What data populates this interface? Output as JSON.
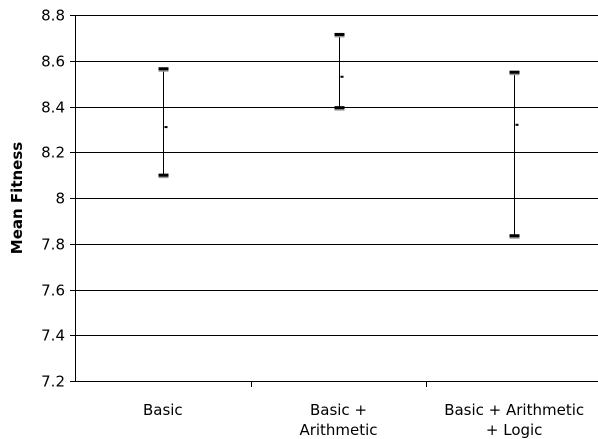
{
  "chart_data": {
    "type": "error-bar",
    "title": "",
    "xlabel": "",
    "ylabel": "Mean Fitness",
    "ylim": [
      7.2,
      8.8
    ],
    "yticks": [
      "7.2",
      "7.4",
      "7.6",
      "7.8",
      "8",
      "8.2",
      "8.4",
      "8.6",
      "8.8"
    ],
    "grid": true,
    "categories": [
      {
        "lines": [
          "Basic"
        ]
      },
      {
        "lines": [
          "Basic +",
          "Arithmetic"
        ]
      },
      {
        "lines": [
          "Basic + Arithmetic",
          "+ Logic"
        ]
      }
    ],
    "series": [
      {
        "low": 8.1,
        "high": 8.565,
        "mean": 8.31
      },
      {
        "low": 8.395,
        "high": 8.715,
        "mean": 8.53
      },
      {
        "low": 7.835,
        "high": 8.55,
        "mean": 8.32
      }
    ],
    "colors": {
      "axis": "#000000",
      "grid": "#000000",
      "bar": "#000000",
      "cap_shadow": "#9a9a9a"
    }
  }
}
